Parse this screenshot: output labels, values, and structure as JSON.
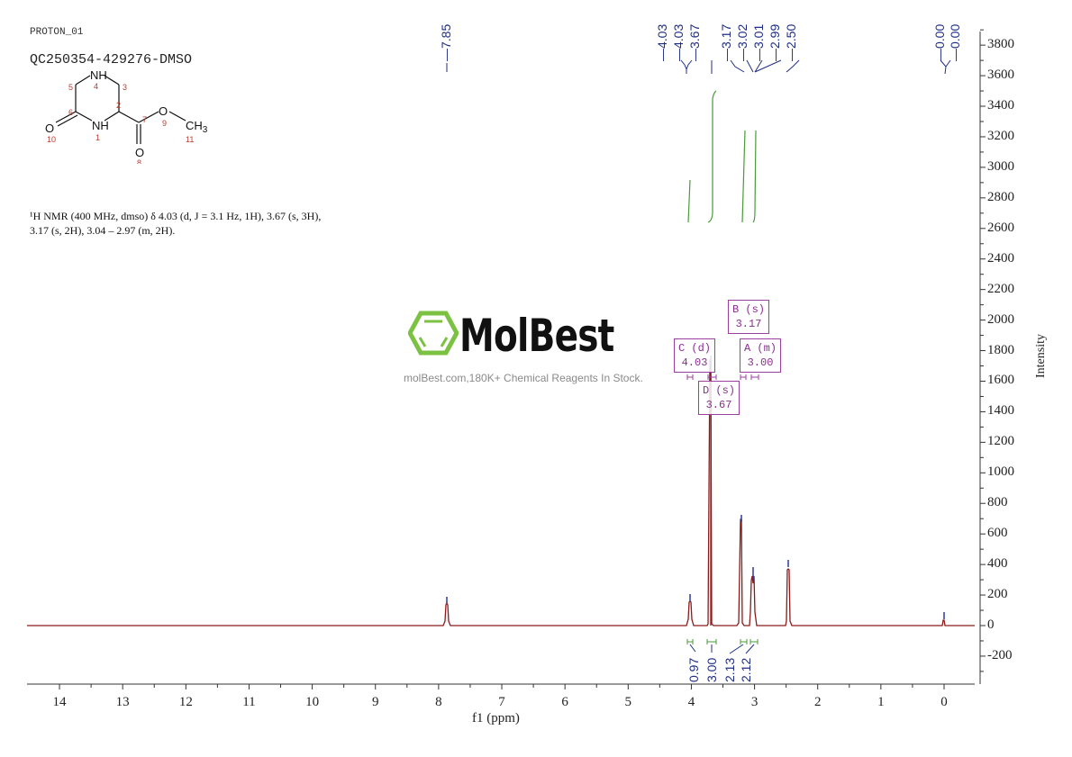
{
  "header": {
    "experiment": "PROTON_01",
    "sample_id": "QC250354-429276-DMSO"
  },
  "structure": {
    "atoms": [
      {
        "label": "NH",
        "number": "4"
      },
      {
        "label": "",
        "number": "5"
      },
      {
        "label": "",
        "number": "3"
      },
      {
        "label": "",
        "number": "6"
      },
      {
        "label": "",
        "number": "2"
      },
      {
        "label": "O",
        "number": "10"
      },
      {
        "label": "NH",
        "number": "1"
      },
      {
        "label": "",
        "number": "7"
      },
      {
        "label": "O",
        "number": "9"
      },
      {
        "label": "CH3",
        "number": "11"
      },
      {
        "label": "O",
        "number": "8"
      }
    ]
  },
  "nmr_description": {
    "line1": "¹H NMR (400 MHz, dmso) δ 4.03 (d, J = 3.1 Hz, 1H), 3.67 (s, 3H),",
    "line2": "3.17 (s, 2H), 3.04 – 2.97 (m, 2H)."
  },
  "watermark": {
    "brand": "MolBest",
    "tagline": "molBest.com,180K+ Chemical Reagents In Stock.",
    "logo_color": "#7cc242"
  },
  "colors": {
    "spectrum": "#8b1a1a",
    "peak_labels": "#1f2e85",
    "integrals": "#4a9a3a",
    "multiplet_boxes": "#9b3fa0",
    "axis": "#333333"
  },
  "peak_labels": [
    "7.85",
    "4.03",
    "4.03",
    "3.67",
    "3.17",
    "3.02",
    "3.01",
    "2.99",
    "2.50",
    "0.00",
    "0.00"
  ],
  "multiplets": [
    {
      "id": "B",
      "mult": "(s)",
      "shift": "3.17"
    },
    {
      "id": "C",
      "mult": "(d)",
      "shift": "4.03"
    },
    {
      "id": "A",
      "mult": "(m)",
      "shift": "3.00"
    },
    {
      "id": "D",
      "mult": "(s)",
      "shift": "3.67"
    }
  ],
  "integrals": [
    "0.97",
    "3.00",
    "2.13",
    "2.12"
  ],
  "chart_data": {
    "type": "line",
    "title": "PROTON_01 — QC250354-429276-DMSO",
    "xlabel": "f1 (ppm)",
    "ylabel": "Intensity",
    "xlim": [
      14.5,
      -0.5
    ],
    "ylim": [
      -350,
      3900
    ],
    "x_ticks": [
      "14",
      "13",
      "12",
      "11",
      "10",
      "9",
      "8",
      "7",
      "6",
      "5",
      "4",
      "3",
      "2",
      "1",
      "0"
    ],
    "y_ticks": [
      "3800",
      "3600",
      "3400",
      "3200",
      "3000",
      "2800",
      "2600",
      "2400",
      "2200",
      "2000",
      "1800",
      "1600",
      "1400",
      "1200",
      "1000",
      "800",
      "600",
      "400",
      "200",
      "0",
      "-200"
    ],
    "grid": false,
    "x_reversed": true,
    "peaks": [
      {
        "ppm": 7.85,
        "intensity": 150
      },
      {
        "ppm": 4.03,
        "intensity": 160
      },
      {
        "ppm": 3.67,
        "intensity": 1700
      },
      {
        "ppm": 3.17,
        "intensity": 660
      },
      {
        "ppm": 3.02,
        "intensity": 300
      },
      {
        "ppm": 3.01,
        "intensity": 260
      },
      {
        "ppm": 2.99,
        "intensity": 240
      },
      {
        "ppm": 2.5,
        "intensity": 370
      },
      {
        "ppm": 0.0,
        "intensity": 45
      }
    ],
    "integrals": [
      {
        "range": [
          4.07,
          3.99
        ],
        "value": 0.97
      },
      {
        "range": [
          3.72,
          3.62
        ],
        "value": 3.0
      },
      {
        "range": [
          3.21,
          3.12
        ],
        "value": 2.13
      },
      {
        "range": [
          3.06,
          2.95
        ],
        "value": 2.12
      }
    ]
  }
}
